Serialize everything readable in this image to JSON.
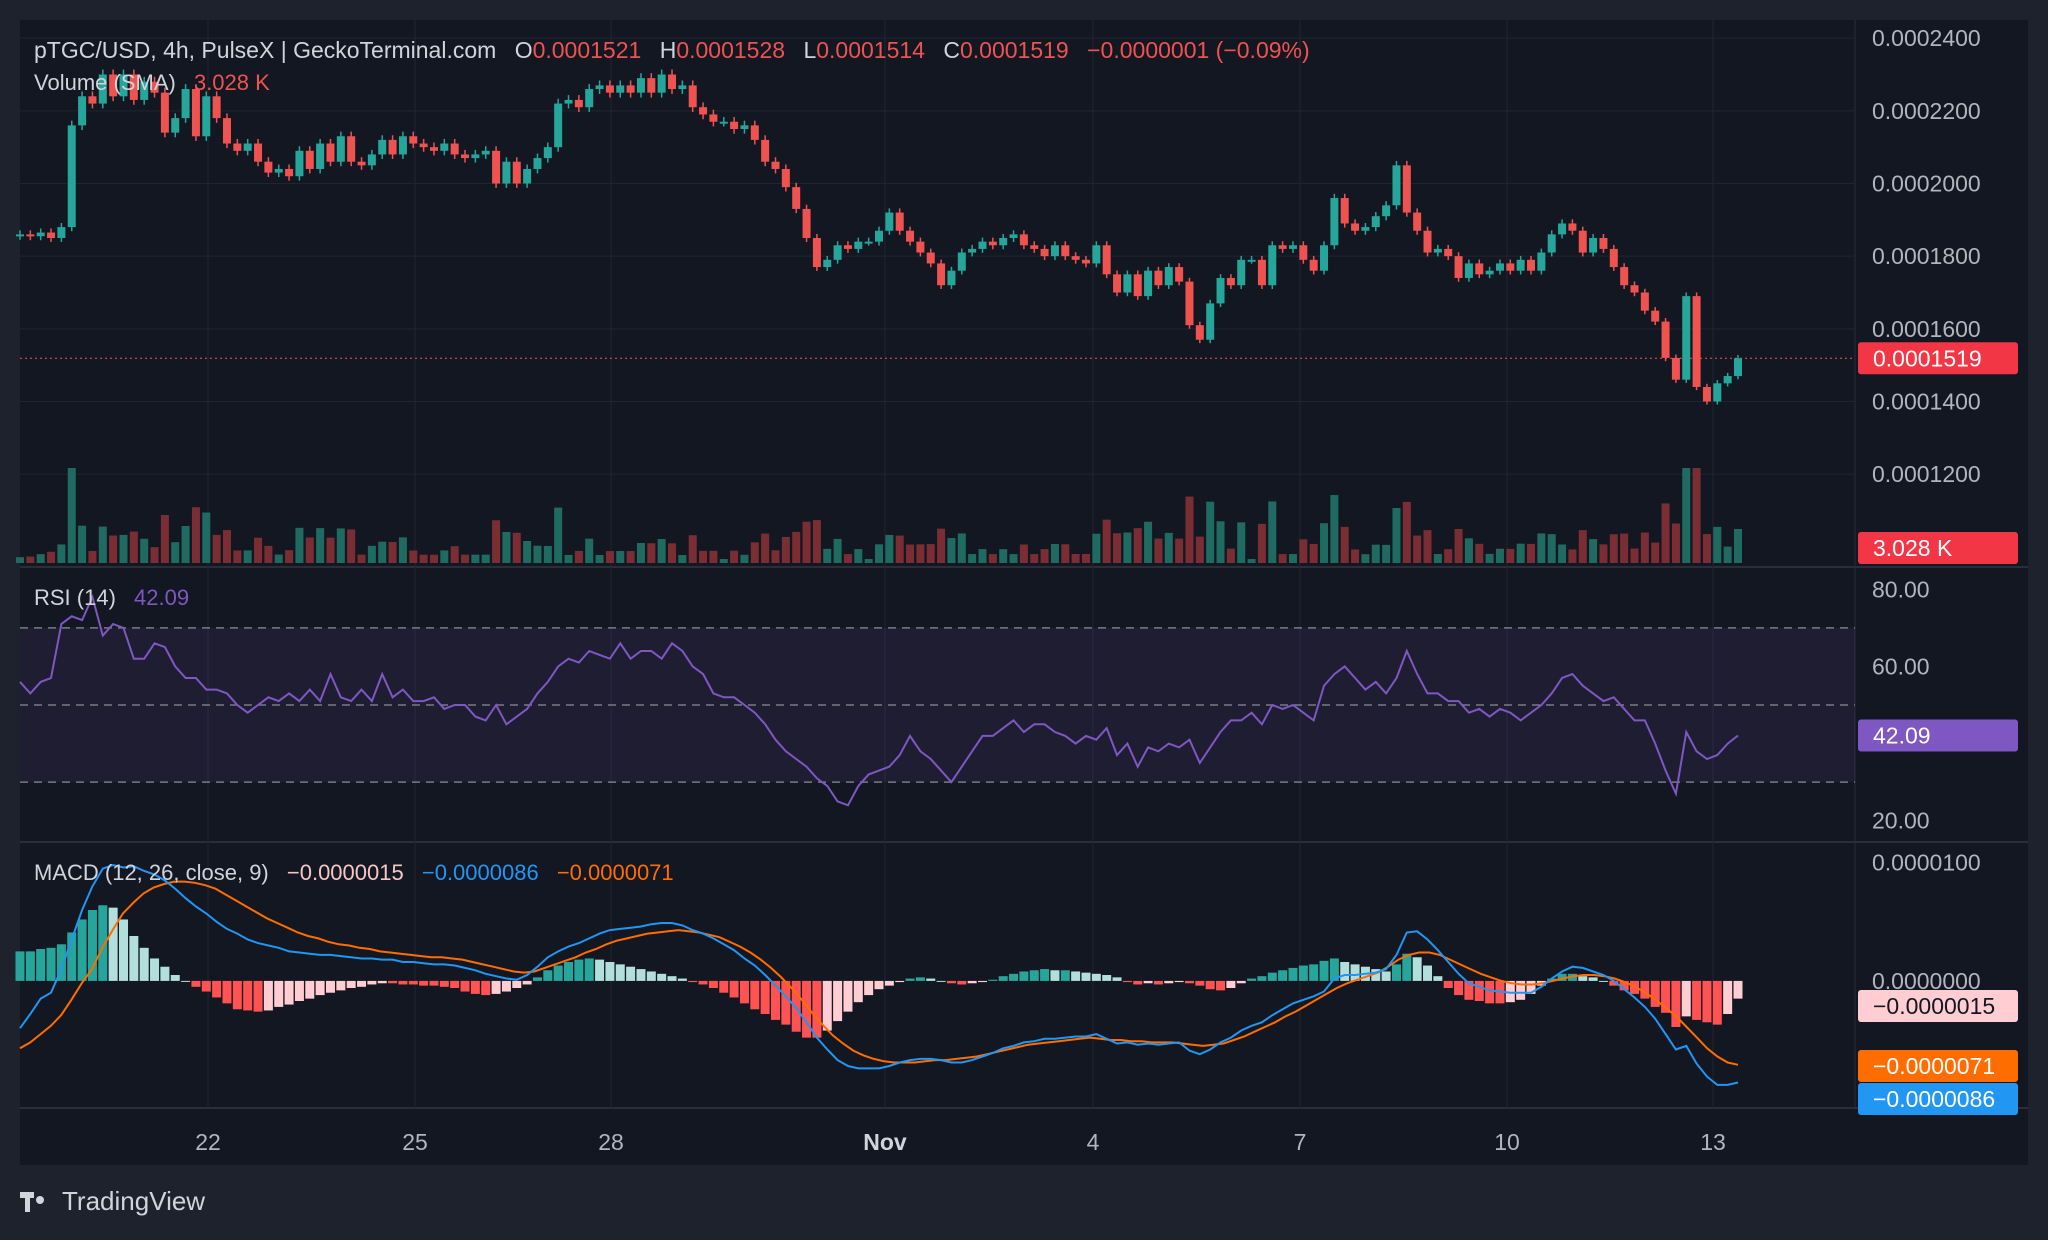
{
  "header": {
    "symbol": "pTGC/USD, 4h, PulseX | GeckoTerminal.com",
    "o_label": "O",
    "o_value": "0.0001521",
    "h_label": "H",
    "h_value": "0.0001528",
    "l_label": "L",
    "l_value": "0.0001514",
    "c_label": "C",
    "c_value": "0.0001519",
    "change": "−0.0000001 (−0.09%)",
    "volume_label": "Volume (SMA)",
    "volume_value": "3.028 K"
  },
  "rsi_header": {
    "label": "RSI (14)",
    "value": "42.09"
  },
  "macd_header": {
    "label": "MACD (12, 26, close, 9)",
    "hist": "−0.0000015",
    "macd": "−0.0000086",
    "signal": "−0.0000071"
  },
  "brand": {
    "name": "TradingView"
  },
  "colors": {
    "background": "#131722",
    "up": "#26a69a",
    "down": "#ef5350",
    "up_volume": "#1f6b61",
    "down_volume": "#7a2e33",
    "rsi": "#7e57c2",
    "macd": "#2196f3",
    "signal": "#ff6d00",
    "text": "#d1d4dc",
    "axis_text": "#b2b5be"
  },
  "chart_data": [
    {
      "type": "candlestick",
      "pane": "price",
      "y_ticks": [
        "0.0002400",
        "0.0002200",
        "0.0002000",
        "0.0001800",
        "0.0001600",
        "0.0001400",
        "0.0001200"
      ],
      "y_tick_values": [
        0.00024,
        0.00022,
        0.0002,
        0.00018,
        0.00016,
        0.00014,
        0.00012
      ],
      "ylim": [
        9.5e-05,
        0.000245
      ],
      "x_ticks": [
        "22",
        "25",
        "28",
        "Nov",
        "4",
        "7",
        "10",
        "13"
      ],
      "last_price_label": "0.0001519",
      "last_price": 0.0001519,
      "close": [
        0.000186,
        0.0001855,
        0.0001865,
        0.000185,
        0.000188,
        0.000216,
        0.000224,
        0.000222,
        0.00023,
        0.000224,
        0.00023,
        0.000223,
        0.000228,
        0.000225,
        0.000214,
        0.000218,
        0.000226,
        0.000213,
        0.000224,
        0.000218,
        0.000211,
        0.000209,
        0.000211,
        0.000206,
        0.000203,
        0.000204,
        0.000202,
        0.000209,
        0.000204,
        0.000211,
        0.000206,
        0.000213,
        0.000206,
        0.000205,
        0.000208,
        0.000212,
        0.000208,
        0.000213,
        0.000211,
        0.00021,
        0.000209,
        0.000211,
        0.000208,
        0.000207,
        0.000208,
        0.000209,
        0.0002,
        0.000206,
        0.0002,
        0.000204,
        0.000207,
        0.00021,
        0.000222,
        0.000223,
        0.000221,
        0.000226,
        0.000227,
        0.000225,
        0.000227,
        0.000225,
        0.000229,
        0.000225,
        0.00023,
        0.000226,
        0.000227,
        0.000221,
        0.000219,
        0.000217,
        0.000217,
        0.000215,
        0.000216,
        0.000212,
        0.000206,
        0.000204,
        0.000199,
        0.000193,
        0.000185,
        0.000177,
        0.000179,
        0.000183,
        0.000182,
        0.000184,
        0.000184,
        0.000187,
        0.000192,
        0.000187,
        0.000184,
        0.000181,
        0.000178,
        0.000172,
        0.000176,
        0.000181,
        0.000182,
        0.000184,
        0.000183,
        0.000185,
        0.000186,
        0.000183,
        0.000182,
        0.00018,
        0.000183,
        0.00018,
        0.000179,
        0.000178,
        0.000183,
        0.000175,
        0.00017,
        0.000175,
        0.000169,
        0.000176,
        0.000172,
        0.000177,
        0.000173,
        0.000161,
        0.000157,
        0.000167,
        0.000174,
        0.000172,
        0.000179,
        0.000179,
        0.000172,
        0.000183,
        0.000182,
        0.000183,
        0.000179,
        0.000176,
        0.000183,
        0.000196,
        0.000189,
        0.000187,
        0.000188,
        0.000191,
        0.000194,
        0.000205,
        0.000192,
        0.000187,
        0.000181,
        0.000182,
        0.00018,
        0.000174,
        0.000178,
        0.000175,
        0.000176,
        0.000178,
        0.000176,
        0.000179,
        0.000176,
        0.000181,
        0.000186,
        0.000189,
        0.000187,
        0.000181,
        0.000185,
        0.000182,
        0.000177,
        0.000172,
        0.00017,
        0.000165,
        0.000162,
        0.000152,
        0.000146,
        0.000169,
        0.000144,
        0.00014,
        0.000145,
        0.000147,
        0.0001519
      ],
      "volume_label": "3.028 K"
    },
    {
      "type": "line",
      "pane": "rsi",
      "name": "RSI (14)",
      "y_ticks": [
        "80.00",
        "60.00",
        "20.00"
      ],
      "y_tick_values": [
        80,
        60,
        20
      ],
      "bands": [
        30,
        50,
        70
      ],
      "ylim": [
        15,
        85
      ],
      "last_value_label": "42.09",
      "values": [
        56,
        53,
        56,
        57,
        71,
        73,
        72,
        78,
        68,
        71,
        70,
        62,
        62,
        66,
        65,
        60,
        57,
        57,
        54,
        54,
        53,
        50,
        48,
        50,
        52,
        51,
        53,
        51,
        54,
        51,
        58,
        52,
        51,
        54,
        51,
        58,
        52,
        54,
        51,
        51,
        52,
        49,
        50,
        50,
        47,
        46,
        50,
        45,
        47,
        49,
        53,
        56,
        60,
        62,
        61,
        64,
        63,
        62,
        66,
        62,
        64,
        64,
        62,
        66,
        64,
        60,
        58,
        53,
        52,
        52,
        50,
        48,
        45,
        41,
        38,
        36,
        34,
        31,
        29,
        25,
        24,
        29,
        32,
        33,
        34,
        37,
        42,
        38,
        36,
        33,
        30,
        34,
        38,
        42,
        42,
        44,
        46,
        43,
        45,
        45,
        43,
        42,
        40,
        42,
        41,
        44,
        37,
        40,
        34,
        39,
        38,
        40,
        39,
        41,
        35,
        39,
        43,
        46,
        46,
        48,
        45,
        50,
        49,
        50,
        48,
        46,
        55,
        58,
        60,
        57,
        54,
        56,
        53,
        57,
        64,
        58,
        53,
        53,
        51,
        51,
        48,
        49,
        47,
        49,
        48,
        46,
        48,
        50,
        53,
        57,
        58,
        55,
        53,
        51,
        52,
        49,
        46,
        46,
        40,
        33,
        27,
        43,
        38,
        36,
        37,
        40,
        42.09
      ]
    },
    {
      "type": "bar+line",
      "pane": "macd",
      "y_ticks": [
        "0.0000100",
        "0.0000000"
      ],
      "y_tick_values": [
        1e-05,
        0
      ],
      "ylim": [
        -1.05e-05,
        1.15e-05
      ],
      "series": [
        {
          "name": "MACD",
          "last_value_label": "−0.0000086",
          "values": [
            -4e-06,
            -2.8e-06,
            -1.5e-06,
            -1e-06,
            1e-06,
            3.5e-06,
            6e-06,
            8e-06,
            9.5e-06,
            9.8e-06,
            9.6e-06,
            9.7e-06,
            9.3e-06,
            9e-06,
            8.5e-06,
            7.8e-06,
            7e-06,
            6.3e-06,
            5.7e-06,
            5e-06,
            4.4e-06,
            4e-06,
            3.5e-06,
            3.2e-06,
            3e-06,
            2.8e-06,
            2.5e-06,
            2.4e-06,
            2.3e-06,
            2.2e-06,
            2.2e-06,
            2.1e-06,
            2e-06,
            1.9e-06,
            1.9e-06,
            1.8e-06,
            1.8e-06,
            1.6e-06,
            1.6e-06,
            1.5e-06,
            1.4e-06,
            1.4e-06,
            1.3e-06,
            1.1e-06,
            9e-07,
            6e-07,
            4e-07,
            2e-07,
            1e-07,
            5e-07,
            1.2e-06,
            2e-06,
            2.5e-06,
            2.9e-06,
            3.2e-06,
            3.6e-06,
            4e-06,
            4.3e-06,
            4.4e-06,
            4.5e-06,
            4.6e-06,
            4.8e-06,
            4.9e-06,
            4.9e-06,
            4.7e-06,
            4.3e-06,
            4e-06,
            3.6e-06,
            3.1e-06,
            2.6e-06,
            1.9e-06,
            1.3e-06,
            5e-07,
            -4e-07,
            -1.3e-06,
            -2.3e-06,
            -3.5e-06,
            -4.8e-06,
            -5.8e-06,
            -6.7e-06,
            -7.2e-06,
            -7.4e-06,
            -7.4e-06,
            -7.4e-06,
            -7.2e-06,
            -6.9e-06,
            -6.7e-06,
            -6.6e-06,
            -6.6e-06,
            -6.7e-06,
            -6.9e-06,
            -6.9e-06,
            -6.7e-06,
            -6.4e-06,
            -6.1e-06,
            -5.7e-06,
            -5.5e-06,
            -5.2e-06,
            -5.1e-06,
            -4.9e-06,
            -4.9e-06,
            -4.8e-06,
            -4.7e-06,
            -4.7e-06,
            -4.5e-06,
            -4.9e-06,
            -5.3e-06,
            -5.2e-06,
            -5.4e-06,
            -5.3e-06,
            -5.4e-06,
            -5.3e-06,
            -5.2e-06,
            -5.9e-06,
            -6.2e-06,
            -5.8e-06,
            -5.2e-06,
            -4.8e-06,
            -4.2e-06,
            -3.8e-06,
            -3.5e-06,
            -2.9e-06,
            -2.4e-06,
            -1.9e-06,
            -1.6e-06,
            -1.3e-06,
            -9e-07,
            2e-07,
            5e-07,
            5e-07,
            6e-07,
            7e-07,
            1e-06,
            2.2e-06,
            4.1e-06,
            4.2e-06,
            3.5e-06,
            2.6e-06,
            1.6e-06,
            6e-07,
            -2e-07,
            -5e-07,
            -8e-07,
            -9e-07,
            -1e-06,
            -1e-06,
            -1e-06,
            -5e-07,
            2e-07,
            8e-07,
            1.2e-06,
            1.1e-06,
            8e-07,
            5e-07,
            0,
            -7e-07,
            -1.4e-06,
            -2.2e-06,
            -3.2e-06,
            -4.5e-06,
            -5.8e-06,
            -5.5e-06,
            -7e-06,
            -8.1e-06,
            -8.8e-06,
            -8.8e-06,
            -8.6e-06
          ]
        },
        {
          "name": "Signal",
          "last_value_label": "−0.0000071",
          "values": [
            -5.7e-06,
            -5.2e-06,
            -4.5e-06,
            -3.8e-06,
            -2.9e-06,
            -1.6e-06,
            -2e-07,
            1e-06,
            2.8e-06,
            4.3e-06,
            5.7e-06,
            6.6e-06,
            7.4e-06,
            7.9e-06,
            8.2e-06,
            8.4e-06,
            8.4e-06,
            8.3e-06,
            8.1e-06,
            7.8e-06,
            7.3e-06,
            6.8e-06,
            6.3e-06,
            5.8e-06,
            5.3e-06,
            4.9e-06,
            4.5e-06,
            4.1e-06,
            3.8e-06,
            3.6e-06,
            3.3e-06,
            3.1e-06,
            3e-06,
            2.8e-06,
            2.7e-06,
            2.5e-06,
            2.4e-06,
            2.3e-06,
            2.2e-06,
            2.1e-06,
            2e-06,
            2e-06,
            1.9e-06,
            1.8e-06,
            1.6e-06,
            1.4e-06,
            1.2e-06,
            1e-06,
            8e-07,
            7e-07,
            8e-07,
            1.1e-06,
            1.4e-06,
            1.7e-06,
            2e-06,
            2.4e-06,
            2.7e-06,
            3.1e-06,
            3.4e-06,
            3.6e-06,
            3.8e-06,
            4e-06,
            4.1e-06,
            4.2e-06,
            4.3e-06,
            4.2e-06,
            4.1e-06,
            3.9e-06,
            3.7e-06,
            3.3e-06,
            2.9e-06,
            2.4e-06,
            1.8e-06,
            1.1e-06,
            3e-07,
            -6e-07,
            -1.6e-06,
            -2.7e-06,
            -3.7e-06,
            -4.6e-06,
            -5.3e-06,
            -5.9e-06,
            -6.3e-06,
            -6.6e-06,
            -6.8e-06,
            -6.9e-06,
            -6.9e-06,
            -6.9e-06,
            -6.8e-06,
            -6.7e-06,
            -6.7e-06,
            -6.6e-06,
            -6.5e-06,
            -6.4e-06,
            -6.2e-06,
            -6e-06,
            -5.8e-06,
            -5.6e-06,
            -5.4e-06,
            -5.3e-06,
            -5.2e-06,
            -5.1e-06,
            -5e-06,
            -4.9e-06,
            -4.8e-06,
            -4.9e-06,
            -5e-06,
            -5e-06,
            -5.1e-06,
            -5.1e-06,
            -5.2e-06,
            -5.2e-06,
            -5.2e-06,
            -5.3e-06,
            -5.4e-06,
            -5.5e-06,
            -5.4e-06,
            -5.3e-06,
            -5e-06,
            -4.7e-06,
            -4.3e-06,
            -3.9e-06,
            -3.5e-06,
            -3e-06,
            -2.6e-06,
            -2.1e-06,
            -1.6e-06,
            -1.1e-06,
            -6e-07,
            -2e-07,
            1e-07,
            4e-07,
            7e-07,
            1.2e-06,
            1.8e-06,
            2.2e-06,
            2.4e-06,
            2.4e-06,
            2.2e-06,
            1.8e-06,
            1.4e-06,
            1e-06,
            6e-07,
            3e-07,
            0,
            -2e-07,
            -3e-07,
            -3e-07,
            -2e-07,
            0,
            2e-07,
            4e-07,
            5e-07,
            5e-07,
            4e-07,
            2e-07,
            -1e-07,
            -5e-07,
            -1e-06,
            -1.6e-06,
            -2.3e-06,
            -3e-06,
            -3.9e-06,
            -4.8e-06,
            -5.7e-06,
            -6.4e-06,
            -6.9e-06,
            -7.1e-06
          ]
        },
        {
          "name": "Histogram",
          "last_value_label": "−0.0000015",
          "values": [
            2.5e-06,
            2.5e-06,
            2.7e-06,
            2.8e-06,
            3.1e-06,
            4.1e-06,
            5.2e-06,
            6e-06,
            6.4e-06,
            6.2e-06,
            5.2e-06,
            3.8e-06,
            2.8e-06,
            1.9e-06,
            1.2e-06,
            5e-07,
            0,
            -5e-07,
            -9e-07,
            -1.4e-06,
            -1.9e-06,
            -2.4e-06,
            -2.5e-06,
            -2.6e-06,
            -2.5e-06,
            -2.2e-06,
            -2e-06,
            -1.7e-06,
            -1.5e-06,
            -1.2e-06,
            -1e-06,
            -8e-07,
            -6e-07,
            -5e-07,
            -3e-07,
            -2e-07,
            -2e-07,
            -3e-07,
            -3e-07,
            -4e-07,
            -4e-07,
            -5e-07,
            -6e-07,
            -9e-07,
            -1.1e-06,
            -1.2e-06,
            -1.1e-06,
            -9e-07,
            -6e-07,
            -3e-07,
            3e-07,
            9e-07,
            1.3e-06,
            1.6e-06,
            1.8e-06,
            1.9e-06,
            1.8e-06,
            1.6e-06,
            1.4e-06,
            1.2e-06,
            1e-06,
            8e-07,
            6e-07,
            4e-07,
            2e-07,
            -1e-07,
            -3e-07,
            -6e-07,
            -1e-06,
            -1.4e-06,
            -1.9e-06,
            -2.4e-06,
            -2.8e-06,
            -3.3e-06,
            -3.7e-06,
            -4.3e-06,
            -4.8e-06,
            -4.8e-06,
            -4.2e-06,
            -3.4e-06,
            -2.6e-06,
            -1.8e-06,
            -1.2e-06,
            -7e-07,
            -4e-07,
            -1e-07,
            2e-07,
            3e-07,
            2e-07,
            0,
            -2e-07,
            -3e-07,
            -2e-07,
            -1e-07,
            1e-07,
            4e-07,
            6e-07,
            8e-07,
            9e-07,
            1e-06,
            9e-07,
            9e-07,
            8e-07,
            7e-07,
            6e-07,
            5e-07,
            3e-07,
            -1e-07,
            -3e-07,
            -2e-07,
            -3e-07,
            -2e-07,
            -1e-07,
            -2e-07,
            -4e-07,
            -7e-07,
            -8e-07,
            -6e-07,
            -2e-07,
            2e-07,
            4e-07,
            7e-07,
            9e-07,
            1.1e-06,
            1.3e-06,
            1.4e-06,
            1.7e-06,
            1.9e-06,
            1.6e-06,
            1.4e-06,
            1.2e-06,
            1e-06,
            8e-07,
            1.4e-06,
            2.3e-06,
            2e-06,
            1.3e-06,
            4e-07,
            -6e-07,
            -1.2e-06,
            -1.6e-06,
            -1.7e-06,
            -1.9e-06,
            -1.9e-06,
            -1.8e-06,
            -1.6e-06,
            -1.1e-06,
            -4e-07,
            2e-07,
            6e-07,
            6e-07,
            4e-07,
            3e-07,
            0,
            -4e-07,
            -8e-07,
            -1.1e-06,
            -1.5e-06,
            -2.2e-06,
            -2.7e-06,
            -3.9e-06,
            -3e-06,
            -3.3e-06,
            -3.5e-06,
            -3.7e-06,
            -2.8e-06,
            -1.5e-06
          ]
        }
      ]
    }
  ]
}
